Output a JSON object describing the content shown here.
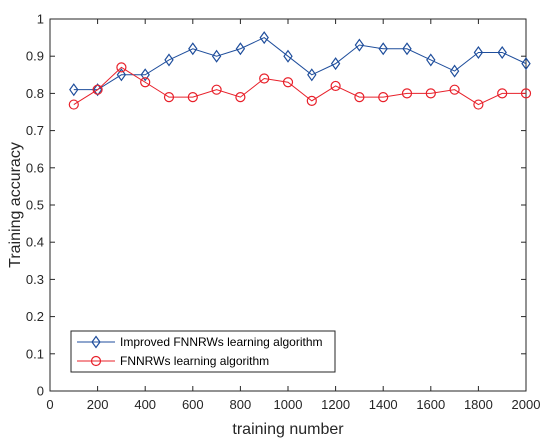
{
  "chart_data": {
    "type": "line",
    "xlabel": "training number",
    "ylabel": "Training accuracy",
    "xlim": [
      0,
      2000
    ],
    "ylim": [
      0,
      1
    ],
    "xticks": [
      0,
      200,
      400,
      600,
      800,
      1000,
      1200,
      1400,
      1600,
      1800,
      2000
    ],
    "yticks": [
      0,
      0.1,
      0.2,
      0.3,
      0.4,
      0.5,
      0.6,
      0.7,
      0.8,
      0.9,
      1
    ],
    "ytick_labels": [
      "0",
      "0.1",
      "0.2",
      "0.3",
      "0.4",
      "0.5",
      "0.6",
      "0.7",
      "0.8",
      "0.9",
      "1"
    ],
    "grid": false,
    "legend_position": "bottom-left",
    "x": [
      100,
      200,
      300,
      400,
      500,
      600,
      700,
      800,
      900,
      1000,
      1100,
      1200,
      1300,
      1400,
      1500,
      1600,
      1700,
      1800,
      1900,
      2000
    ],
    "series": [
      {
        "name": "Improved FNNRWs learning algorithm",
        "color": "#1f4e9c",
        "marker": "diamond",
        "values": [
          0.81,
          0.81,
          0.85,
          0.85,
          0.89,
          0.92,
          0.9,
          0.92,
          0.95,
          0.9,
          0.85,
          0.88,
          0.93,
          0.92,
          0.92,
          0.89,
          0.86,
          0.91,
          0.91,
          0.88
        ]
      },
      {
        "name": "FNNRWs learning algorithm",
        "color": "#e8202a",
        "marker": "circle",
        "values": [
          0.77,
          0.81,
          0.87,
          0.83,
          0.79,
          0.79,
          0.81,
          0.79,
          0.84,
          0.83,
          0.78,
          0.82,
          0.79,
          0.79,
          0.8,
          0.8,
          0.81,
          0.77,
          0.8,
          0.8
        ]
      }
    ]
  }
}
